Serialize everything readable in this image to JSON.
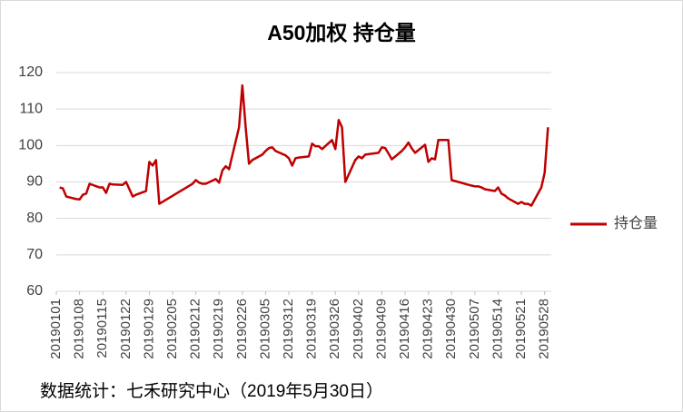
{
  "chart_data": {
    "type": "line",
    "title": "A50加权  持仓量",
    "source": "数据统计：七禾研究中心（2019年5月30日）",
    "x": [
      "20190102",
      "20190103",
      "20190104",
      "20190107",
      "20190108",
      "20190109",
      "20190110",
      "20190111",
      "20190114",
      "20190115",
      "20190116",
      "20190117",
      "20190118",
      "20190121",
      "20190122",
      "20190123",
      "20190124",
      "20190125",
      "20190128",
      "20190129",
      "20190130",
      "20190131",
      "20190201",
      "20190211",
      "20190212",
      "20190213",
      "20190214",
      "20190215",
      "20190218",
      "20190219",
      "20190220",
      "20190221",
      "20190222",
      "20190225",
      "20190226",
      "20190227",
      "20190228",
      "20190301",
      "20190304",
      "20190305",
      "20190306",
      "20190307",
      "20190308",
      "20190311",
      "20190312",
      "20190313",
      "20190314",
      "20190315",
      "20190318",
      "20190319",
      "20190320",
      "20190321",
      "20190322",
      "20190325",
      "20190326",
      "20190327",
      "20190328",
      "20190329",
      "20190401",
      "20190402",
      "20190403",
      "20190404",
      "20190408",
      "20190409",
      "20190410",
      "20190411",
      "20190412",
      "20190415",
      "20190416",
      "20190417",
      "20190418",
      "20190419",
      "20190422",
      "20190423",
      "20190424",
      "20190425",
      "20190426",
      "20190429",
      "20190430",
      "20190506",
      "20190507",
      "20190508",
      "20190509",
      "20190510",
      "20190513",
      "20190514",
      "20190515",
      "20190516",
      "20190517",
      "20190520",
      "20190521",
      "20190522",
      "20190523",
      "20190524",
      "20190527",
      "20190528",
      "20190529"
    ],
    "series": [
      {
        "name": "持仓量",
        "color": "#c00000",
        "values": [
          88.5,
          88.2,
          86,
          85.3,
          85.2,
          86.5,
          86.8,
          89.5,
          88.5,
          88.5,
          87,
          89.5,
          89.3,
          89.2,
          90,
          88,
          86,
          86.5,
          87.5,
          95.5,
          94.5,
          96,
          84,
          89.5,
          90.5,
          89.8,
          89.5,
          89.5,
          90.8,
          89.8,
          93.2,
          94.3,
          93.5,
          105,
          116.5,
          105,
          95,
          96,
          97.5,
          98.5,
          99.3,
          99.5,
          98.5,
          97.3,
          96.5,
          94.5,
          96.5,
          96.7,
          97,
          100.5,
          99.8,
          99.8,
          99,
          101.5,
          99,
          107,
          105,
          90,
          96,
          97,
          96.5,
          97.5,
          98,
          99.5,
          99.3,
          97.8,
          96.2,
          98.5,
          99.5,
          100.8,
          99.2,
          98,
          100.2,
          95.5,
          96.5,
          96.2,
          101.5,
          101.5,
          90.5,
          89,
          88.8,
          88.8,
          88.5,
          88,
          87.5,
          88.5,
          86.8,
          86.3,
          85.5,
          84,
          84.5,
          84,
          84,
          83.5,
          88.5,
          92.5,
          105
        ]
      }
    ],
    "xlim": [
      "20190101",
      "20190530"
    ],
    "xticks": [
      "20190101",
      "20190108",
      "20190115",
      "20190122",
      "20190129",
      "20190205",
      "20190212",
      "20190219",
      "20190226",
      "20190305",
      "20190312",
      "20190319",
      "20190326",
      "20190402",
      "20190409",
      "20190416",
      "20190423",
      "20190430",
      "20190507",
      "20190514",
      "20190521",
      "20190528"
    ],
    "ylim": [
      60,
      120
    ],
    "yticks": [
      60,
      70,
      80,
      90,
      100,
      110,
      120
    ],
    "grid": true,
    "legend": "right"
  }
}
